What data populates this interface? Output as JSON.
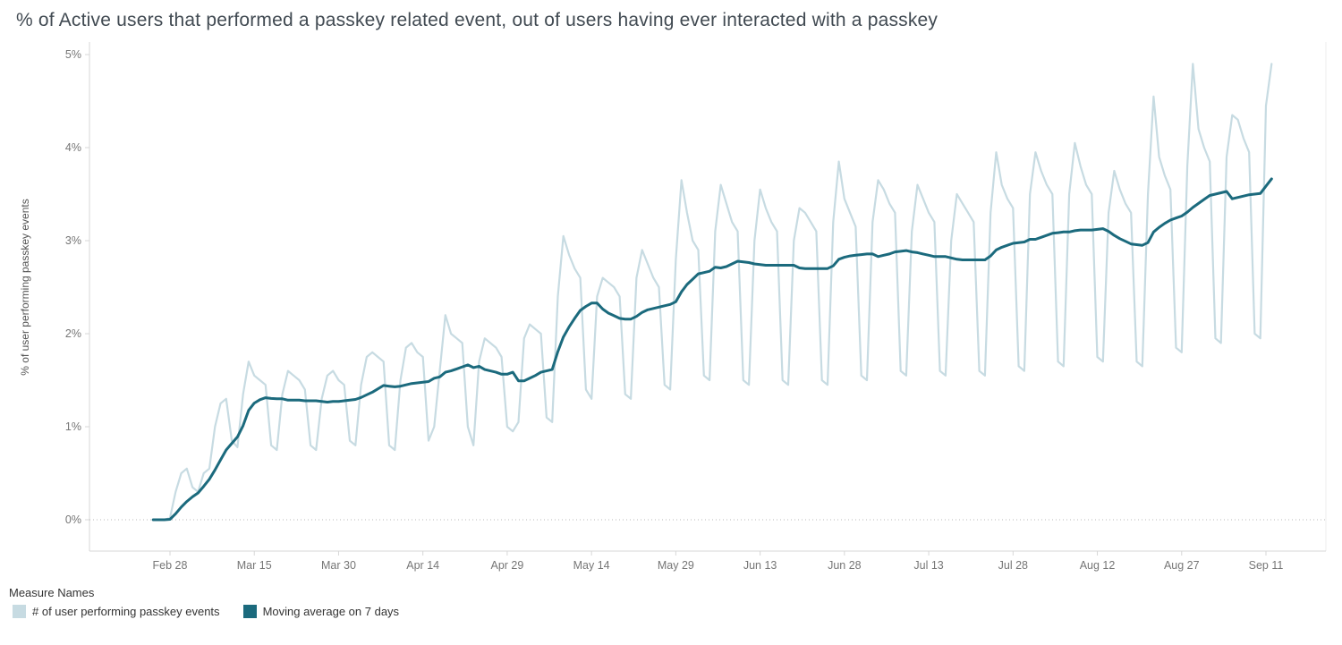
{
  "title": "% of Active users that performed a passkey related event, out of users having ever interacted with a passkey",
  "legend": {
    "title": "Measure Names",
    "items": [
      {
        "label": "# of user performing passkey events"
      },
      {
        "label": "Moving average on 7 days"
      }
    ]
  },
  "colors": {
    "daily_series": "#c7dbe2",
    "moving_average": "#1b6a7d",
    "axis_text": "#767676",
    "axis_line": "#d7d7d7",
    "zero_line": "#b9b9b9",
    "title_text": "#414a52"
  },
  "chart_data": {
    "type": "line",
    "title": "% of Active users that performed a passkey related event, out of users having ever interacted with a passkey",
    "xlabel": "",
    "ylabel": "% of user performing passkey events",
    "ylim": [
      0,
      5
    ],
    "grid": "zero-line-only",
    "legend_position": "bottom-left",
    "yticks": [
      {
        "label": "0%",
        "value": 0
      },
      {
        "label": "1%",
        "value": 1
      },
      {
        "label": "2%",
        "value": 2
      },
      {
        "label": "3%",
        "value": 3
      },
      {
        "label": "4%",
        "value": 4
      },
      {
        "label": "5%",
        "value": 5
      }
    ],
    "x_unit": "daily points, day index 0 = Feb 25; tick marks every 15 days",
    "xticks": [
      {
        "label": "Feb 28",
        "day": 3
      },
      {
        "label": "Mar 15",
        "day": 18
      },
      {
        "label": "Mar 30",
        "day": 33
      },
      {
        "label": "Apr 14",
        "day": 48
      },
      {
        "label": "Apr 29",
        "day": 63
      },
      {
        "label": "May 14",
        "day": 78
      },
      {
        "label": "May 29",
        "day": 93
      },
      {
        "label": "Jun 13",
        "day": 108
      },
      {
        "label": "Jun 28",
        "day": 123
      },
      {
        "label": "Jul 13",
        "day": 138
      },
      {
        "label": "Jul 28",
        "day": 153
      },
      {
        "label": "Aug 12",
        "day": 168
      },
      {
        "label": "Aug 27",
        "day": 183
      },
      {
        "label": "Sep 11",
        "day": 198
      }
    ],
    "moving_average_window": 7,
    "series": [
      {
        "name": "# of user performing passkey events",
        "color": "#c7dbe2",
        "values": [
          0,
          0,
          0,
          0.02,
          0.3,
          0.5,
          0.55,
          0.35,
          0.3,
          0.5,
          0.55,
          1.0,
          1.25,
          1.3,
          0.85,
          0.78,
          1.35,
          1.7,
          1.55,
          1.5,
          1.45,
          0.8,
          0.75,
          1.35,
          1.6,
          1.55,
          1.5,
          1.4,
          0.8,
          0.75,
          1.3,
          1.55,
          1.6,
          1.5,
          1.45,
          0.85,
          0.8,
          1.45,
          1.75,
          1.8,
          1.75,
          1.7,
          0.8,
          0.75,
          1.5,
          1.85,
          1.9,
          1.8,
          1.75,
          0.85,
          1.0,
          1.6,
          2.2,
          2.0,
          1.95,
          1.9,
          1.0,
          0.8,
          1.7,
          1.95,
          1.9,
          1.85,
          1.75,
          1.0,
          0.95,
          1.05,
          1.95,
          2.1,
          2.05,
          2.0,
          1.1,
          1.05,
          2.4,
          3.05,
          2.85,
          2.7,
          2.6,
          1.4,
          1.3,
          2.4,
          2.6,
          2.55,
          2.5,
          2.4,
          1.35,
          1.3,
          2.6,
          2.9,
          2.75,
          2.6,
          2.5,
          1.45,
          1.4,
          2.8,
          3.65,
          3.3,
          3.0,
          2.9,
          1.55,
          1.5,
          3.1,
          3.6,
          3.4,
          3.2,
          3.1,
          1.5,
          1.45,
          3.0,
          3.55,
          3.35,
          3.2,
          3.1,
          1.5,
          1.45,
          3.0,
          3.35,
          3.3,
          3.2,
          3.1,
          1.5,
          1.45,
          3.2,
          3.85,
          3.45,
          3.3,
          3.15,
          1.55,
          1.5,
          3.2,
          3.65,
          3.55,
          3.4,
          3.3,
          1.6,
          1.55,
          3.1,
          3.6,
          3.45,
          3.3,
          3.2,
          1.6,
          1.55,
          3.0,
          3.5,
          3.4,
          3.3,
          3.2,
          1.6,
          1.55,
          3.3,
          3.95,
          3.6,
          3.45,
          3.35,
          1.65,
          1.6,
          3.5,
          3.95,
          3.75,
          3.6,
          3.5,
          1.7,
          1.65,
          3.5,
          4.05,
          3.8,
          3.6,
          3.5,
          1.75,
          1.7,
          3.3,
          3.75,
          3.55,
          3.4,
          3.3,
          1.7,
          1.65,
          3.5,
          4.55,
          3.9,
          3.7,
          3.55,
          1.85,
          1.8,
          3.8,
          4.9,
          4.2,
          4.0,
          3.85,
          1.95,
          1.9,
          3.9,
          4.35,
          4.3,
          4.1,
          3.95,
          2.0,
          1.95,
          4.45,
          4.9
        ]
      },
      {
        "name": "Moving average on 7 days",
        "color": "#1b6a7d",
        "derivation": "trailing 7-day moving average of series 0"
      }
    ]
  }
}
